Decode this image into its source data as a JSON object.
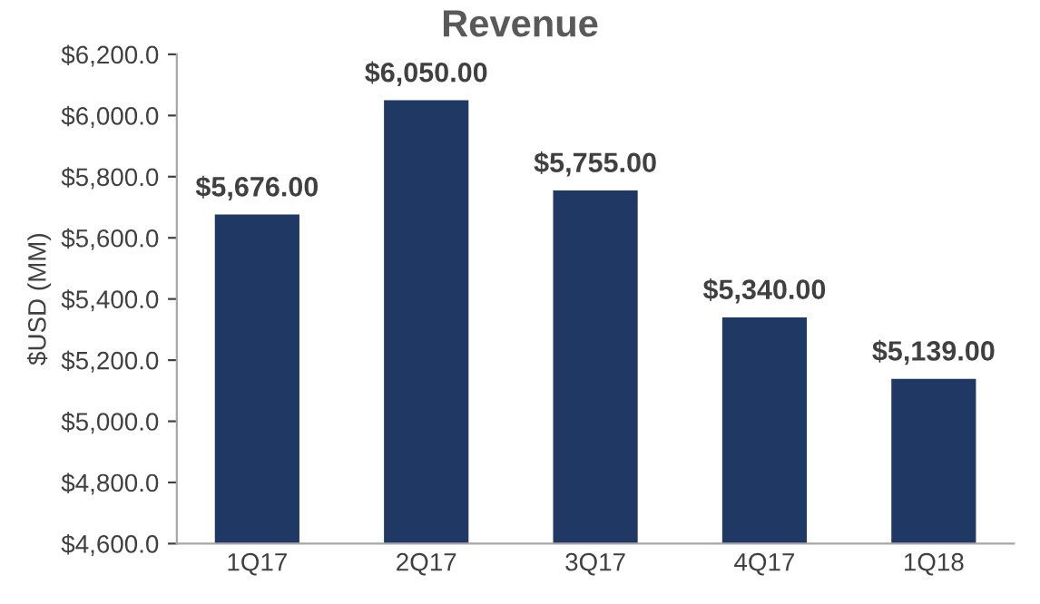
{
  "chart_data": {
    "type": "bar",
    "title": "Revenue",
    "ylabel": "$USD (MM)",
    "categories": [
      "1Q17",
      "2Q17",
      "3Q17",
      "4Q17",
      "1Q18"
    ],
    "values": [
      5676,
      6050,
      5755,
      5340,
      5139
    ],
    "value_labels": [
      "$5,676.00",
      "$6,050.00",
      "$5,755.00",
      "$5,340.00",
      "$5,139.00"
    ],
    "color": "#1f3864",
    "ylim": [
      4600,
      6200
    ],
    "yticks": [
      {
        "value": 4600,
        "label": "$4,600.0"
      },
      {
        "value": 4800,
        "label": "$4,800.0"
      },
      {
        "value": 5000,
        "label": "$5,000.0"
      },
      {
        "value": 5200,
        "label": "$5,200.0"
      },
      {
        "value": 5400,
        "label": "$5,400.0"
      },
      {
        "value": 5600,
        "label": "$5,600.0"
      },
      {
        "value": 5800,
        "label": "$5,800.0"
      },
      {
        "value": 6000,
        "label": "$6,000.0"
      },
      {
        "value": 6200,
        "label": "$6,200.0"
      }
    ],
    "grid": false,
    "legend": false
  }
}
